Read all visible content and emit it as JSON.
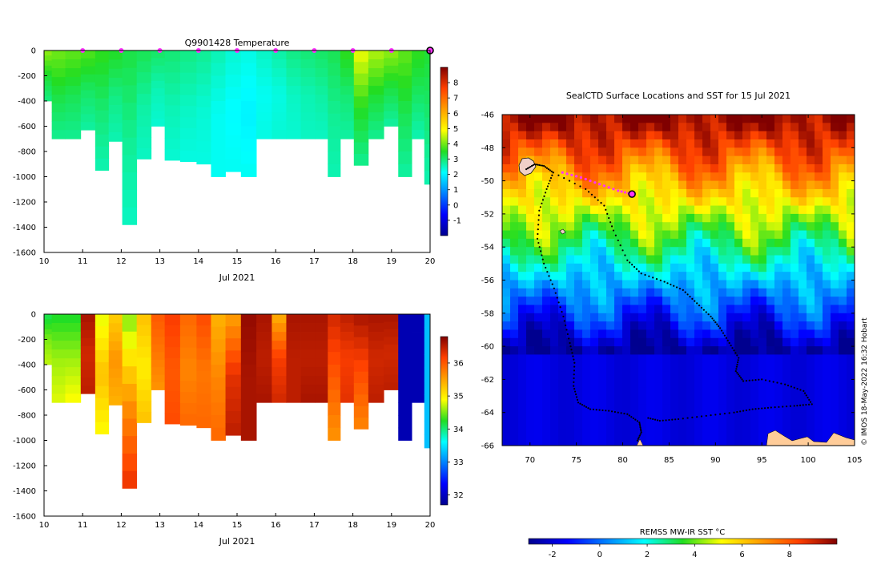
{
  "chart_data": [
    {
      "type": "heatmap",
      "title": "Q9901428  Temperature",
      "xlabel": "Jul 2021",
      "x_ticks": [
        "10",
        "11",
        "12",
        "13",
        "14",
        "15",
        "16",
        "17",
        "18",
        "19",
        "20"
      ],
      "y_ticks": [
        "0",
        "-200",
        "-400",
        "-600",
        "-800",
        "-1000",
        "-1200",
        "-1400",
        "-1600"
      ],
      "xlim": [
        10,
        20
      ],
      "ylim": [
        -1600,
        0
      ],
      "colorbar": {
        "min": -2,
        "max": 9,
        "ticks": [
          "-1",
          "0",
          "1",
          "2",
          "3",
          "4",
          "5",
          "6",
          "7",
          "8"
        ],
        "tick_values": [
          -1,
          0,
          1,
          2,
          3,
          4,
          5,
          6,
          7,
          8
        ]
      },
      "profile_markers_x": [
        11,
        12,
        13,
        14,
        15,
        16,
        17,
        18,
        19
      ],
      "current_marker_x": 20,
      "profiles": [
        {
          "x": 10.05,
          "depth": 400,
          "top": 4.2,
          "mid": 3.4,
          "bot": 2.9
        },
        {
          "x": 10.35,
          "depth": 700,
          "top": 4.0,
          "mid": 3.3,
          "bot": 2.8
        },
        {
          "x": 10.75,
          "depth": 700,
          "top": 3.9,
          "mid": 3.2,
          "bot": 2.8
        },
        {
          "x": 11.15,
          "depth": 630,
          "top": 3.8,
          "mid": 3.1,
          "bot": 2.7
        },
        {
          "x": 11.5,
          "depth": 950,
          "top": 3.6,
          "mid": 3.0,
          "bot": 2.6
        },
        {
          "x": 11.85,
          "depth": 720,
          "top": 3.5,
          "mid": 2.9,
          "bot": 2.6
        },
        {
          "x": 12.2,
          "depth": 1380,
          "top": 3.3,
          "mid": 2.8,
          "bot": 2.5
        },
        {
          "x": 12.6,
          "depth": 860,
          "top": 3.2,
          "mid": 2.7,
          "bot": 2.5
        },
        {
          "x": 12.95,
          "depth": 600,
          "top": 3.1,
          "mid": 2.6,
          "bot": 2.4
        },
        {
          "x": 13.3,
          "depth": 870,
          "top": 3.0,
          "mid": 2.6,
          "bot": 2.4
        },
        {
          "x": 13.75,
          "depth": 880,
          "top": 2.9,
          "mid": 2.5,
          "bot": 2.3
        },
        {
          "x": 14.15,
          "depth": 900,
          "top": 2.8,
          "mid": 2.4,
          "bot": 2.3
        },
        {
          "x": 14.5,
          "depth": 1000,
          "top": 2.6,
          "mid": 2.2,
          "bot": 2.2
        },
        {
          "x": 14.9,
          "depth": 960,
          "top": 2.4,
          "mid": 2.1,
          "bot": 2.2
        },
        {
          "x": 15.3,
          "depth": 1000,
          "top": 2.3,
          "mid": 2.0,
          "bot": 2.2
        },
        {
          "x": 15.7,
          "depth": 700,
          "top": 2.5,
          "mid": 2.2,
          "bot": 2.3
        },
        {
          "x": 16.1,
          "depth": 700,
          "top": 2.7,
          "mid": 2.3,
          "bot": 2.4
        },
        {
          "x": 16.45,
          "depth": 700,
          "top": 2.9,
          "mid": 2.5,
          "bot": 2.4
        },
        {
          "x": 16.85,
          "depth": 700,
          "top": 3.0,
          "mid": 2.6,
          "bot": 2.5
        },
        {
          "x": 17.2,
          "depth": 700,
          "top": 3.1,
          "mid": 2.7,
          "bot": 2.5
        },
        {
          "x": 17.5,
          "depth": 1000,
          "top": 3.2,
          "mid": 2.8,
          "bot": 2.6
        },
        {
          "x": 17.85,
          "depth": 700,
          "top": 3.6,
          "mid": 3.0,
          "bot": 2.7
        },
        {
          "x": 18.2,
          "depth": 910,
          "top": 4.8,
          "mid": 3.5,
          "bot": 2.8
        },
        {
          "x": 18.6,
          "depth": 700,
          "top": 4.4,
          "mid": 3.4,
          "bot": 2.8
        },
        {
          "x": 19.0,
          "depth": 600,
          "top": 4.2,
          "mid": 3.3,
          "bot": 2.7
        },
        {
          "x": 19.35,
          "depth": 1000,
          "top": 3.9,
          "mid": 3.2,
          "bot": 2.7
        },
        {
          "x": 19.7,
          "depth": 700,
          "top": 3.6,
          "mid": 3.1,
          "bot": 2.6
        },
        {
          "x": 20.0,
          "depth": 1060,
          "top": 3.4,
          "mid": 3.0,
          "bot": 2.6
        }
      ]
    },
    {
      "type": "heatmap",
      "title": "",
      "xlabel": "Jul 2021",
      "x_ticks": [
        "10",
        "11",
        "12",
        "13",
        "14",
        "15",
        "16",
        "17",
        "18",
        "19",
        "20"
      ],
      "y_ticks": [
        "0",
        "-200",
        "-400",
        "-600",
        "-800",
        "-1000",
        "-1200",
        "-1400",
        "-1600"
      ],
      "xlim": [
        10,
        20
      ],
      "ylim": [
        -1600,
        0
      ],
      "colorbar": {
        "min": 31.7,
        "max": 36.8,
        "ticks": [
          "32",
          "33",
          "34",
          "35",
          "36"
        ],
        "tick_values": [
          32,
          33,
          34,
          35,
          36
        ]
      },
      "profiles": [
        {
          "x": 10.05,
          "depth": 400,
          "top": 34.1,
          "mid": 34.5,
          "bot": 34.7
        },
        {
          "x": 10.35,
          "depth": 700,
          "top": 34.2,
          "mid": 34.6,
          "bot": 34.8
        },
        {
          "x": 10.75,
          "depth": 700,
          "top": 34.2,
          "mid": 34.6,
          "bot": 34.9
        },
        {
          "x": 11.15,
          "depth": 630,
          "top": 36.6,
          "mid": 36.4,
          "bot": 36.5
        },
        {
          "x": 11.5,
          "depth": 950,
          "top": 34.8,
          "mid": 35.3,
          "bot": 34.9
        },
        {
          "x": 11.85,
          "depth": 720,
          "top": 35.2,
          "mid": 35.6,
          "bot": 35.4
        },
        {
          "x": 12.2,
          "depth": 1380,
          "top": 34.5,
          "mid": 35.6,
          "bot": 36.3
        },
        {
          "x": 12.6,
          "depth": 860,
          "top": 35.3,
          "mid": 35.0,
          "bot": 35.3
        },
        {
          "x": 12.95,
          "depth": 600,
          "top": 36.0,
          "mid": 35.8,
          "bot": 35.6
        },
        {
          "x": 13.3,
          "depth": 870,
          "top": 36.2,
          "mid": 36.0,
          "bot": 36.1
        },
        {
          "x": 13.75,
          "depth": 880,
          "top": 35.9,
          "mid": 35.7,
          "bot": 35.9
        },
        {
          "x": 14.15,
          "depth": 900,
          "top": 36.1,
          "mid": 35.8,
          "bot": 35.9
        },
        {
          "x": 14.5,
          "depth": 1000,
          "top": 35.4,
          "mid": 35.7,
          "bot": 35.9
        },
        {
          "x": 14.9,
          "depth": 960,
          "top": 35.5,
          "mid": 36.3,
          "bot": 36.5
        },
        {
          "x": 15.3,
          "depth": 1000,
          "top": 36.7,
          "mid": 36.6,
          "bot": 36.6
        },
        {
          "x": 15.7,
          "depth": 700,
          "top": 36.6,
          "mid": 36.5,
          "bot": 36.6
        },
        {
          "x": 16.1,
          "depth": 700,
          "top": 35.4,
          "mid": 36.2,
          "bot": 36.4
        },
        {
          "x": 16.45,
          "depth": 700,
          "top": 36.6,
          "mid": 36.5,
          "bot": 36.5
        },
        {
          "x": 16.85,
          "depth": 700,
          "top": 36.6,
          "mid": 36.5,
          "bot": 36.6
        },
        {
          "x": 17.2,
          "depth": 700,
          "top": 36.6,
          "mid": 36.5,
          "bot": 36.6
        },
        {
          "x": 17.5,
          "depth": 1000,
          "top": 36.4,
          "mid": 36.0,
          "bot": 35.6
        },
        {
          "x": 17.85,
          "depth": 700,
          "top": 36.5,
          "mid": 36.2,
          "bot": 36.3
        },
        {
          "x": 18.2,
          "depth": 910,
          "top": 36.6,
          "mid": 36.1,
          "bot": 35.7
        },
        {
          "x": 18.6,
          "depth": 700,
          "top": 36.6,
          "mid": 36.4,
          "bot": 36.5
        },
        {
          "x": 19.0,
          "depth": 600,
          "top": 36.6,
          "mid": 36.4,
          "bot": 36.5
        },
        {
          "x": 19.35,
          "depth": 1000,
          "top": 31.9,
          "mid": 31.9,
          "bot": 31.9
        },
        {
          "x": 19.7,
          "depth": 700,
          "top": 31.9,
          "mid": 31.9,
          "bot": 31.9
        },
        {
          "x": 20.0,
          "depth": 1060,
          "top": 33.3,
          "mid": 33.3,
          "bot": 33.3
        }
      ]
    },
    {
      "type": "heatmap",
      "title": "SealCTD Surface Locations and SST for 15 Jul 2021",
      "xlabel": "",
      "ylabel": "",
      "xlim": [
        67,
        105
      ],
      "ylim": [
        -66,
        -46
      ],
      "x_ticks": [
        "70",
        "75",
        "80",
        "85",
        "90",
        "95",
        "100",
        "105"
      ],
      "x_tick_values": [
        70,
        75,
        80,
        85,
        90,
        95,
        100,
        105
      ],
      "y_ticks": [
        "-46",
        "-48",
        "-50",
        "-52",
        "-54",
        "-56",
        "-58",
        "-60",
        "-62",
        "-64",
        "-66"
      ],
      "y_tick_values": [
        -46,
        -48,
        -50,
        -52,
        -54,
        -56,
        -58,
        -60,
        -62,
        -64,
        -66
      ],
      "colorbar": {
        "label": "REMSS MW-IR SST °C",
        "min": -3,
        "max": 10,
        "ticks": [
          "-2",
          "0",
          "2",
          "4",
          "6",
          "8"
        ],
        "tick_values": [
          -2,
          0,
          2,
          4,
          6,
          8
        ]
      },
      "current_position": [
        81.0,
        -50.8
      ],
      "recent_track": [
        [
          73.5,
          -49.5
        ],
        [
          75.5,
          -49.8
        ],
        [
          77.5,
          -50.2
        ],
        [
          79.5,
          -50.6
        ],
        [
          81.0,
          -50.8
        ]
      ],
      "track": [
        [
          69.6,
          -49.3
        ],
        [
          70.5,
          -49.0
        ],
        [
          71.5,
          -49.1
        ],
        [
          72.5,
          -49.5
        ],
        [
          71.8,
          -50.5
        ],
        [
          71.0,
          -51.8
        ],
        [
          70.8,
          -53.5
        ],
        [
          71.5,
          -55.0
        ],
        [
          72.6,
          -56.5
        ],
        [
          73.6,
          -58.2
        ],
        [
          74.3,
          -59.8
        ],
        [
          74.8,
          -61.0
        ],
        [
          74.7,
          -62.4
        ],
        [
          75.2,
          -63.4
        ],
        [
          76.5,
          -63.8
        ],
        [
          78.5,
          -63.9
        ],
        [
          80.5,
          -64.1
        ],
        [
          81.8,
          -64.6
        ],
        [
          82.0,
          -65.2
        ],
        [
          81.5,
          -65.8
        ]
      ],
      "track2": [
        [
          72.5,
          -49.5
        ],
        [
          76.0,
          -50.5
        ],
        [
          78.0,
          -51.5
        ],
        [
          79.0,
          -53.0
        ],
        [
          80.5,
          -54.8
        ],
        [
          82.0,
          -55.6
        ],
        [
          84.5,
          -56.1
        ],
        [
          86.5,
          -56.6
        ],
        [
          88.0,
          -57.4
        ],
        [
          89.5,
          -58.2
        ],
        [
          90.5,
          -58.9
        ],
        [
          91.5,
          -59.8
        ],
        [
          92.5,
          -60.7
        ],
        [
          92.2,
          -61.5
        ],
        [
          93.0,
          -62.1
        ],
        [
          95.0,
          -62.0
        ],
        [
          97.5,
          -62.3
        ],
        [
          99.5,
          -62.7
        ],
        [
          100.4,
          -63.5
        ],
        [
          98.5,
          -63.6
        ],
        [
          96.0,
          -63.7
        ],
        [
          94.0,
          -63.8
        ],
        [
          92.0,
          -64.0
        ],
        [
          89.0,
          -64.2
        ],
        [
          86.0,
          -64.4
        ],
        [
          84.0,
          -64.5
        ],
        [
          82.5,
          -64.3
        ]
      ],
      "credit": "© IMOS 18-May-2022 16:32 Hobart"
    }
  ]
}
